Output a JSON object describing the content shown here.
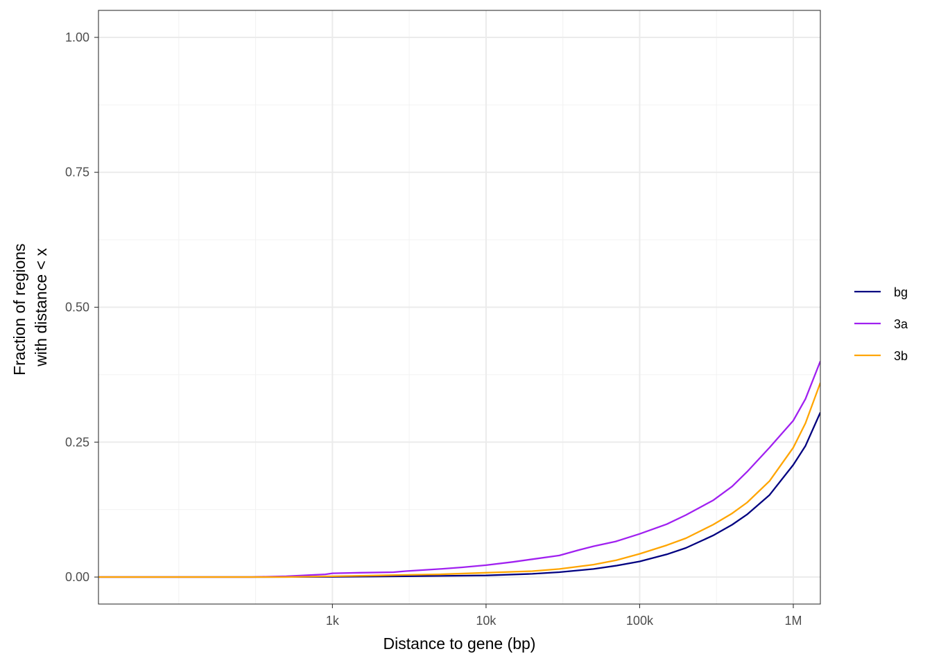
{
  "chart_data": {
    "type": "line",
    "x_scale": "log10",
    "xlabel": "Distance to gene (bp)",
    "ylabel_lines": [
      "Fraction of regions",
      "with distance < x"
    ],
    "xlim": [
      30,
      1500000
    ],
    "ylim": [
      -0.05,
      1.05
    ],
    "x_ticks": [
      {
        "value": 1000,
        "label": "1k"
      },
      {
        "value": 10000,
        "label": "10k"
      },
      {
        "value": 100000,
        "label": "100k"
      },
      {
        "value": 1000000,
        "label": "1M"
      }
    ],
    "x_minor_ticks": [
      100,
      316,
      3162,
      31623,
      316228
    ],
    "y_ticks": [
      {
        "value": 0,
        "label": "0.00"
      },
      {
        "value": 0.25,
        "label": "0.25"
      },
      {
        "value": 0.5,
        "label": "0.50"
      },
      {
        "value": 0.75,
        "label": "0.75"
      },
      {
        "value": 1.0,
        "label": "1.00"
      }
    ],
    "y_minor_ticks": [
      0.125,
      0.375,
      0.625,
      0.875
    ],
    "grid": true,
    "legend_position": "right",
    "series": [
      {
        "name": "bg",
        "color": "#000080",
        "x": [
          30,
          100,
          300,
          1000,
          3000,
          10000,
          20000,
          30000,
          50000,
          70000,
          100000,
          150000,
          200000,
          300000,
          400000,
          500000,
          700000,
          1000000,
          1200000,
          1500000
        ],
        "y": [
          0,
          0,
          0,
          0.0005,
          0.0015,
          0.003,
          0.006,
          0.009,
          0.015,
          0.021,
          0.029,
          0.042,
          0.054,
          0.077,
          0.097,
          0.116,
          0.152,
          0.208,
          0.243,
          0.305
        ]
      },
      {
        "name": "3a",
        "color": "#A020F0",
        "x": [
          30,
          300,
          500,
          700,
          900,
          1000,
          1500,
          2500,
          3000,
          5000,
          7000,
          10000,
          15000,
          20000,
          30000,
          40000,
          50000,
          70000,
          100000,
          150000,
          200000,
          300000,
          400000,
          500000,
          700000,
          1000000,
          1200000,
          1500000
        ],
        "y": [
          0,
          0,
          0.0015,
          0.0035,
          0.005,
          0.007,
          0.008,
          0.009,
          0.011,
          0.015,
          0.018,
          0.022,
          0.028,
          0.033,
          0.04,
          0.05,
          0.057,
          0.066,
          0.08,
          0.098,
          0.115,
          0.142,
          0.168,
          0.195,
          0.24,
          0.29,
          0.33,
          0.4
        ]
      },
      {
        "name": "3b",
        "color": "#FFA500",
        "x": [
          30,
          500,
          1000,
          2000,
          3000,
          5000,
          10000,
          20000,
          30000,
          50000,
          70000,
          100000,
          150000,
          200000,
          300000,
          400000,
          500000,
          700000,
          1000000,
          1200000,
          1500000
        ],
        "y": [
          0,
          0,
          0.0015,
          0.003,
          0.004,
          0.005,
          0.008,
          0.011,
          0.015,
          0.023,
          0.031,
          0.043,
          0.059,
          0.072,
          0.097,
          0.118,
          0.138,
          0.178,
          0.24,
          0.285,
          0.36
        ]
      }
    ]
  }
}
